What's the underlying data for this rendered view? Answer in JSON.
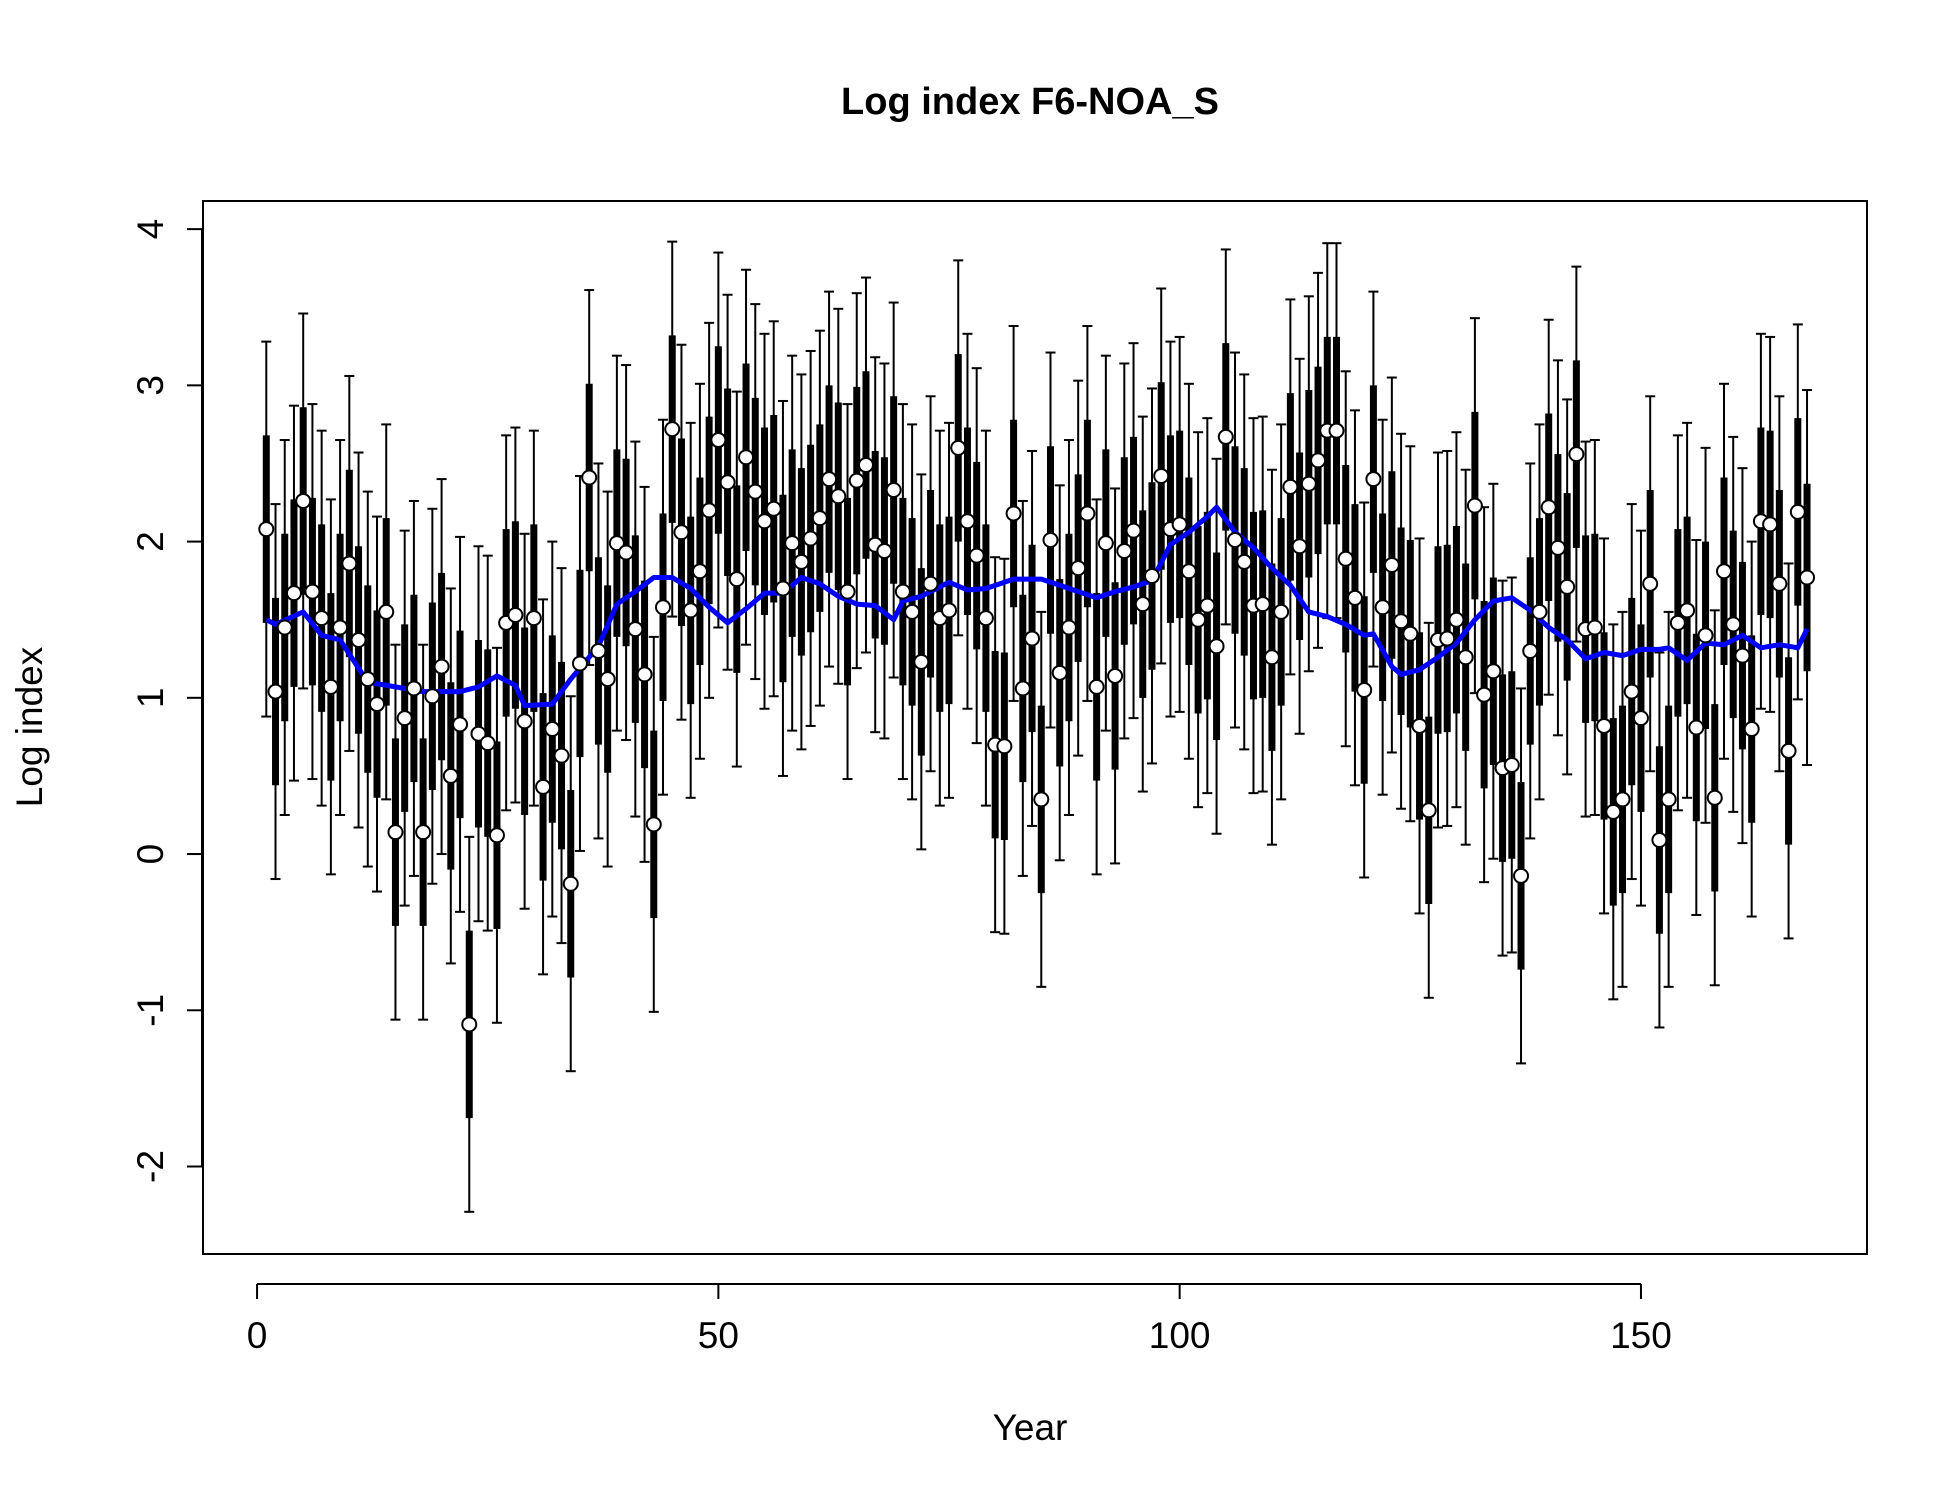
{
  "chart_data": {
    "type": "errorbar",
    "title": "Log index F6-NOA_S",
    "xlabel": "Year",
    "ylabel": "Log index",
    "xlim": [
      -5.86,
      174.5
    ],
    "ylim": [
      -2.56,
      4.18
    ],
    "xticks": [
      0,
      50,
      100,
      150
    ],
    "yticks": [
      -2,
      -1,
      0,
      1,
      2,
      3,
      4
    ],
    "color": "#000000",
    "error_inner": 0.6,
    "error_outer": 1.2,
    "x": [
      1,
      2,
      3,
      4,
      5,
      6,
      7,
      8,
      9,
      10,
      11,
      12,
      13,
      14,
      15,
      16,
      17,
      18,
      19,
      20,
      21,
      22,
      23,
      24,
      25,
      26,
      27,
      28,
      29,
      30,
      31,
      32,
      33,
      34,
      35,
      36,
      37,
      38,
      39,
      40,
      41,
      42,
      43,
      44,
      45,
      46,
      47,
      48,
      49,
      50,
      51,
      52,
      53,
      54,
      55,
      56,
      57,
      58,
      59,
      60,
      61,
      62,
      63,
      64,
      65,
      66,
      67,
      68,
      69,
      70,
      71,
      72,
      73,
      74,
      75,
      76,
      77,
      78,
      79,
      80,
      81,
      82,
      83,
      84,
      85,
      86,
      87,
      88,
      89,
      90,
      91,
      92,
      93,
      94,
      95,
      96,
      97,
      98,
      99,
      100,
      101,
      102,
      103,
      104,
      105,
      106,
      107,
      108,
      109,
      110,
      111,
      112,
      113,
      114,
      115,
      116,
      117,
      118,
      119,
      120,
      121,
      122,
      123,
      124,
      125,
      126,
      127,
      128,
      129,
      130,
      131,
      132,
      133,
      134,
      135,
      136,
      137,
      138,
      139,
      140,
      141,
      142,
      143,
      144,
      145,
      146,
      147,
      148,
      149,
      150,
      151,
      152,
      153,
      154,
      155,
      156,
      157,
      158,
      159,
      160,
      161,
      162,
      163,
      164,
      165,
      166,
      167,
      168
    ],
    "values": [
      2.08,
      1.04,
      1.45,
      1.67,
      2.26,
      1.68,
      1.51,
      1.07,
      1.45,
      1.86,
      1.37,
      1.12,
      0.96,
      1.55,
      0.14,
      0.87,
      1.06,
      0.14,
      1.01,
      1.2,
      0.5,
      0.83,
      -1.09,
      0.77,
      0.71,
      0.12,
      1.48,
      1.53,
      0.85,
      1.51,
      0.43,
      0.8,
      0.63,
      -0.19,
      1.22,
      2.41,
      1.3,
      1.12,
      1.99,
      1.93,
      1.44,
      1.15,
      0.19,
      1.58,
      2.72,
      2.06,
      1.56,
      1.81,
      2.2,
      2.65,
      2.38,
      1.76,
      2.54,
      2.32,
      2.13,
      2.21,
      1.7,
      1.99,
      1.87,
      2.02,
      2.15,
      2.4,
      2.29,
      1.68,
      2.39,
      2.49,
      1.98,
      1.94,
      2.33,
      1.68,
      1.55,
      1.23,
      1.73,
      1.51,
      1.56,
      2.6,
      2.13,
      1.91,
      1.51,
      0.7,
      0.69,
      2.18,
      1.06,
      1.38,
      0.35,
      2.01,
      1.16,
      1.45,
      1.83,
      2.18,
      1.07,
      1.99,
      1.14,
      1.94,
      2.07,
      1.6,
      1.78,
      2.42,
      2.08,
      2.11,
      1.81,
      1.5,
      1.59,
      1.33,
      2.67,
      2.01,
      1.87,
      1.59,
      1.6,
      1.26,
      1.55,
      2.35,
      1.97,
      2.37,
      2.52,
      2.71,
      2.71,
      1.89,
      1.64,
      1.05,
      2.4,
      1.58,
      1.85,
      1.49,
      1.41,
      0.82,
      0.28,
      1.37,
      1.38,
      1.5,
      1.26,
      2.23,
      1.02,
      1.17,
      0.55,
      0.57,
      -0.14,
      1.3,
      1.55,
      2.22,
      1.96,
      1.71,
      2.56,
      1.44,
      1.45,
      0.82,
      0.27,
      0.35,
      1.04,
      0.87,
      1.73,
      0.09,
      0.35,
      1.48,
      1.56,
      0.81,
      1.4,
      0.36,
      1.81,
      1.47,
      1.27,
      0.8,
      2.13,
      2.11,
      1.73,
      0.66,
      2.19,
      1.77
    ],
    "fit": {
      "color": "#0000ff",
      "x": [
        1,
        2,
        5,
        7,
        9,
        12,
        15,
        18,
        22,
        24,
        26,
        28,
        29,
        32,
        34,
        37,
        39,
        41,
        43,
        45,
        47,
        49,
        51,
        53,
        55,
        57,
        59,
        61,
        63,
        65,
        67,
        69,
        70,
        72,
        75,
        77,
        79,
        82,
        85,
        87,
        89,
        91,
        93,
        95,
        97,
        99,
        101,
        103,
        104,
        106,
        108,
        110,
        112,
        114,
        116,
        118,
        120,
        121,
        123,
        124,
        126,
        128,
        130,
        132,
        134,
        136,
        138,
        140,
        142,
        144,
        146,
        148,
        150,
        152,
        153,
        155,
        157,
        159,
        161,
        163,
        165,
        167,
        168
      ],
      "values": [
        1.5,
        1.47,
        1.55,
        1.4,
        1.37,
        1.1,
        1.07,
        1.04,
        1.04,
        1.07,
        1.14,
        1.08,
        0.95,
        0.96,
        1.12,
        1.33,
        1.6,
        1.68,
        1.77,
        1.77,
        1.7,
        1.58,
        1.48,
        1.57,
        1.67,
        1.67,
        1.77,
        1.73,
        1.65,
        1.6,
        1.59,
        1.5,
        1.62,
        1.65,
        1.74,
        1.69,
        1.7,
        1.76,
        1.76,
        1.72,
        1.68,
        1.64,
        1.68,
        1.71,
        1.75,
        1.98,
        2.06,
        2.16,
        2.22,
        2.06,
        1.96,
        1.83,
        1.72,
        1.55,
        1.52,
        1.47,
        1.4,
        1.41,
        1.2,
        1.15,
        1.18,
        1.26,
        1.35,
        1.5,
        1.62,
        1.64,
        1.56,
        1.45,
        1.37,
        1.25,
        1.29,
        1.27,
        1.31,
        1.31,
        1.32,
        1.24,
        1.35,
        1.34,
        1.4,
        1.32,
        1.34,
        1.32,
        1.44
      ]
    }
  }
}
